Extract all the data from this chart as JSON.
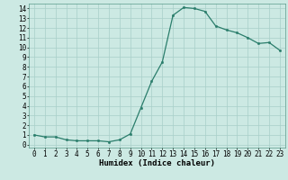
{
  "xlabel": "Humidex (Indice chaleur)",
  "x_values": [
    0,
    1,
    2,
    3,
    4,
    5,
    6,
    7,
    8,
    9,
    10,
    11,
    12,
    13,
    14,
    15,
    16,
    17,
    18,
    19,
    20,
    21,
    22,
    23
  ],
  "y_values": [
    1.0,
    0.8,
    0.8,
    0.5,
    0.4,
    0.4,
    0.4,
    0.3,
    0.5,
    1.1,
    3.8,
    6.5,
    8.5,
    13.3,
    14.1,
    14.0,
    13.7,
    12.2,
    11.8,
    11.5,
    11.0,
    10.4,
    10.5,
    9.7
  ],
  "line_color": "#2a7d6b",
  "marker": "o",
  "markersize": 1.8,
  "linewidth": 0.9,
  "background_color": "#cce9e3",
  "grid_color": "#a8cfc8",
  "ylim": [
    -0.3,
    14.5
  ],
  "xlim": [
    -0.5,
    23.5
  ],
  "yticks": [
    0,
    1,
    2,
    3,
    4,
    5,
    6,
    7,
    8,
    9,
    10,
    11,
    12,
    13,
    14
  ],
  "xticks": [
    0,
    1,
    2,
    3,
    4,
    5,
    6,
    7,
    8,
    9,
    10,
    11,
    12,
    13,
    14,
    15,
    16,
    17,
    18,
    19,
    20,
    21,
    22,
    23
  ],
  "tick_fontsize": 5.5,
  "xlabel_fontsize": 6.5
}
